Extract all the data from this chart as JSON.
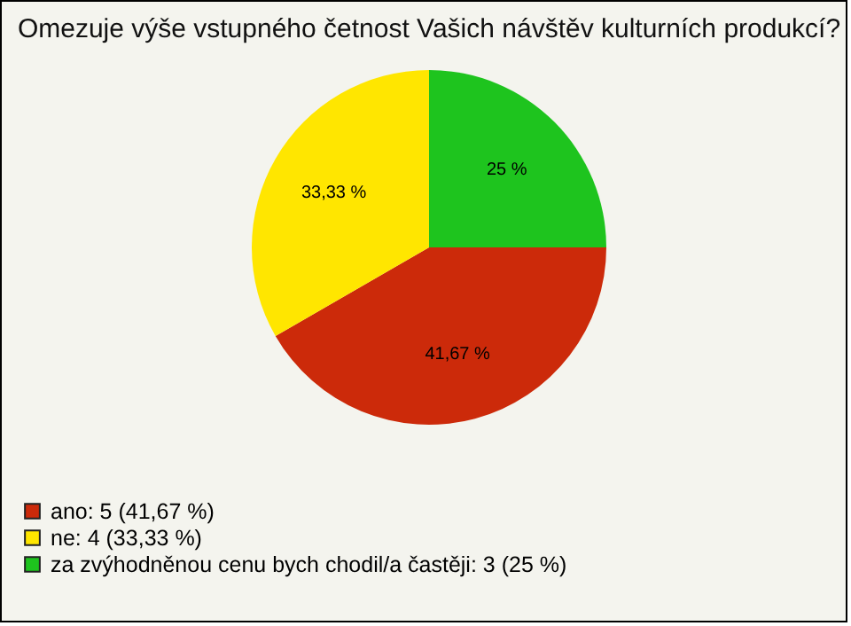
{
  "chart_data": {
    "type": "pie",
    "title": "Omezuje výše vstupného četnost Vašich návštěv kulturních produkcí?",
    "categories": [
      "ano: 5 (41,67 %)",
      "ne: 4 (33,33 %)",
      "za zvýhodněnou cenu bych chodil/a častěji: 3 (25 %)"
    ],
    "values": [
      41.67,
      33.33,
      25
    ],
    "value_labels": [
      "41,67 %",
      "33,33 %",
      "25 %"
    ],
    "colors": [
      "#cc2a0a",
      "#ffe600",
      "#1ec41e"
    ],
    "legend": "bottom left"
  }
}
